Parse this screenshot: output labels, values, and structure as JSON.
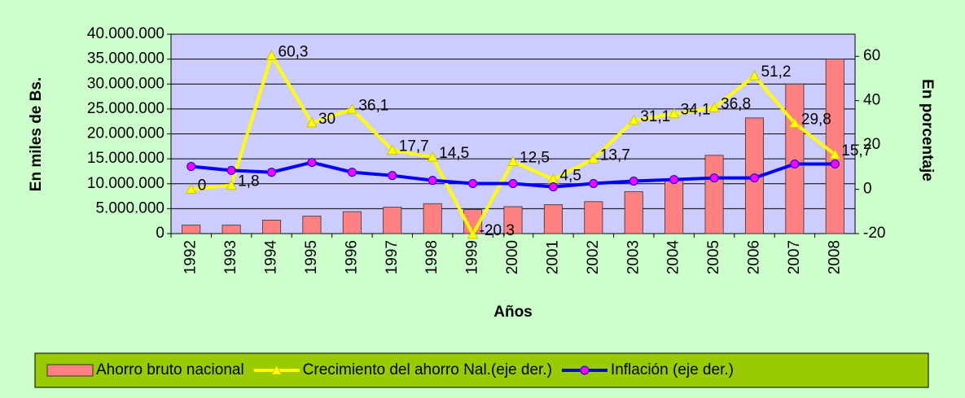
{
  "chart_data": {
    "type": "bar",
    "categories": [
      "1992",
      "1993",
      "1994",
      "1995",
      "1996",
      "1997",
      "1998",
      "1999",
      "2000",
      "2001",
      "2002",
      "2003",
      "2004",
      "2005",
      "2006",
      "2007",
      "2008"
    ],
    "x_label": "Años",
    "y_label": "En miles de Bs.",
    "y2_label": "En porcentaje",
    "ylim": [
      0,
      40000000
    ],
    "yticks": [
      0,
      {
        "value": 5000000,
        "label": "5.000.000"
      },
      {
        "value": 10000000,
        "label": "10.000.000"
      },
      {
        "value": 15000000,
        "label": "15.000.000"
      },
      {
        "value": 20000000,
        "label": "20.000.000"
      },
      {
        "value": 25000000,
        "label": "25.000.000"
      },
      {
        "value": 30000000,
        "label": "30.000.000"
      },
      {
        "value": 35000000,
        "label": "35.000.000"
      },
      {
        "value": 40000000,
        "label": "40.000.000"
      }
    ],
    "y2lim": [
      -20,
      70
    ],
    "y2ticks": [
      -20,
      0,
      20,
      40,
      60
    ],
    "grid": true,
    "legend": "bottom",
    "series": [
      {
        "name": "Ahorro bruto nacional",
        "type": "bar",
        "color": "#ff8080",
        "values": [
          1700000,
          1700000,
          2700000,
          3500000,
          4400000,
          5300000,
          6000000,
          4800000,
          5400000,
          5800000,
          6400000,
          8400000,
          10800000,
          15700000,
          23200000,
          30000000,
          35000000
        ]
      },
      {
        "name": "Crecimiento del ahorro Nal.(eje der.)",
        "type": "line",
        "axis": "y2",
        "color": "#ffff00",
        "marker": "triangle",
        "values": [
          0,
          1.8,
          60.3,
          30,
          36.1,
          17.7,
          14.5,
          -20.3,
          12.5,
          4.5,
          13.7,
          31.1,
          34.1,
          36.8,
          51.2,
          29.8,
          15.7
        ],
        "value_labels": [
          "0",
          "1,8",
          "60,3",
          "30",
          "36,1",
          "17,7",
          "14,5",
          "-20,3",
          "12,5",
          "4,5",
          "13,7",
          "31,1",
          "34,1",
          "36,8",
          "51,2",
          "29,8",
          "15,7"
        ]
      },
      {
        "name": "Inflación (eje der.)",
        "type": "line",
        "axis": "y2",
        "color": "#0000ff",
        "marker": "circle",
        "marker_color": "#ff00ff",
        "values": [
          10.3,
          8.5,
          7.7,
          12.1,
          7.7,
          6.2,
          4,
          2.6,
          2.6,
          1.1,
          2.6,
          3.7,
          4.4,
          5.1,
          5.1,
          11.4,
          11.4
        ]
      }
    ]
  }
}
